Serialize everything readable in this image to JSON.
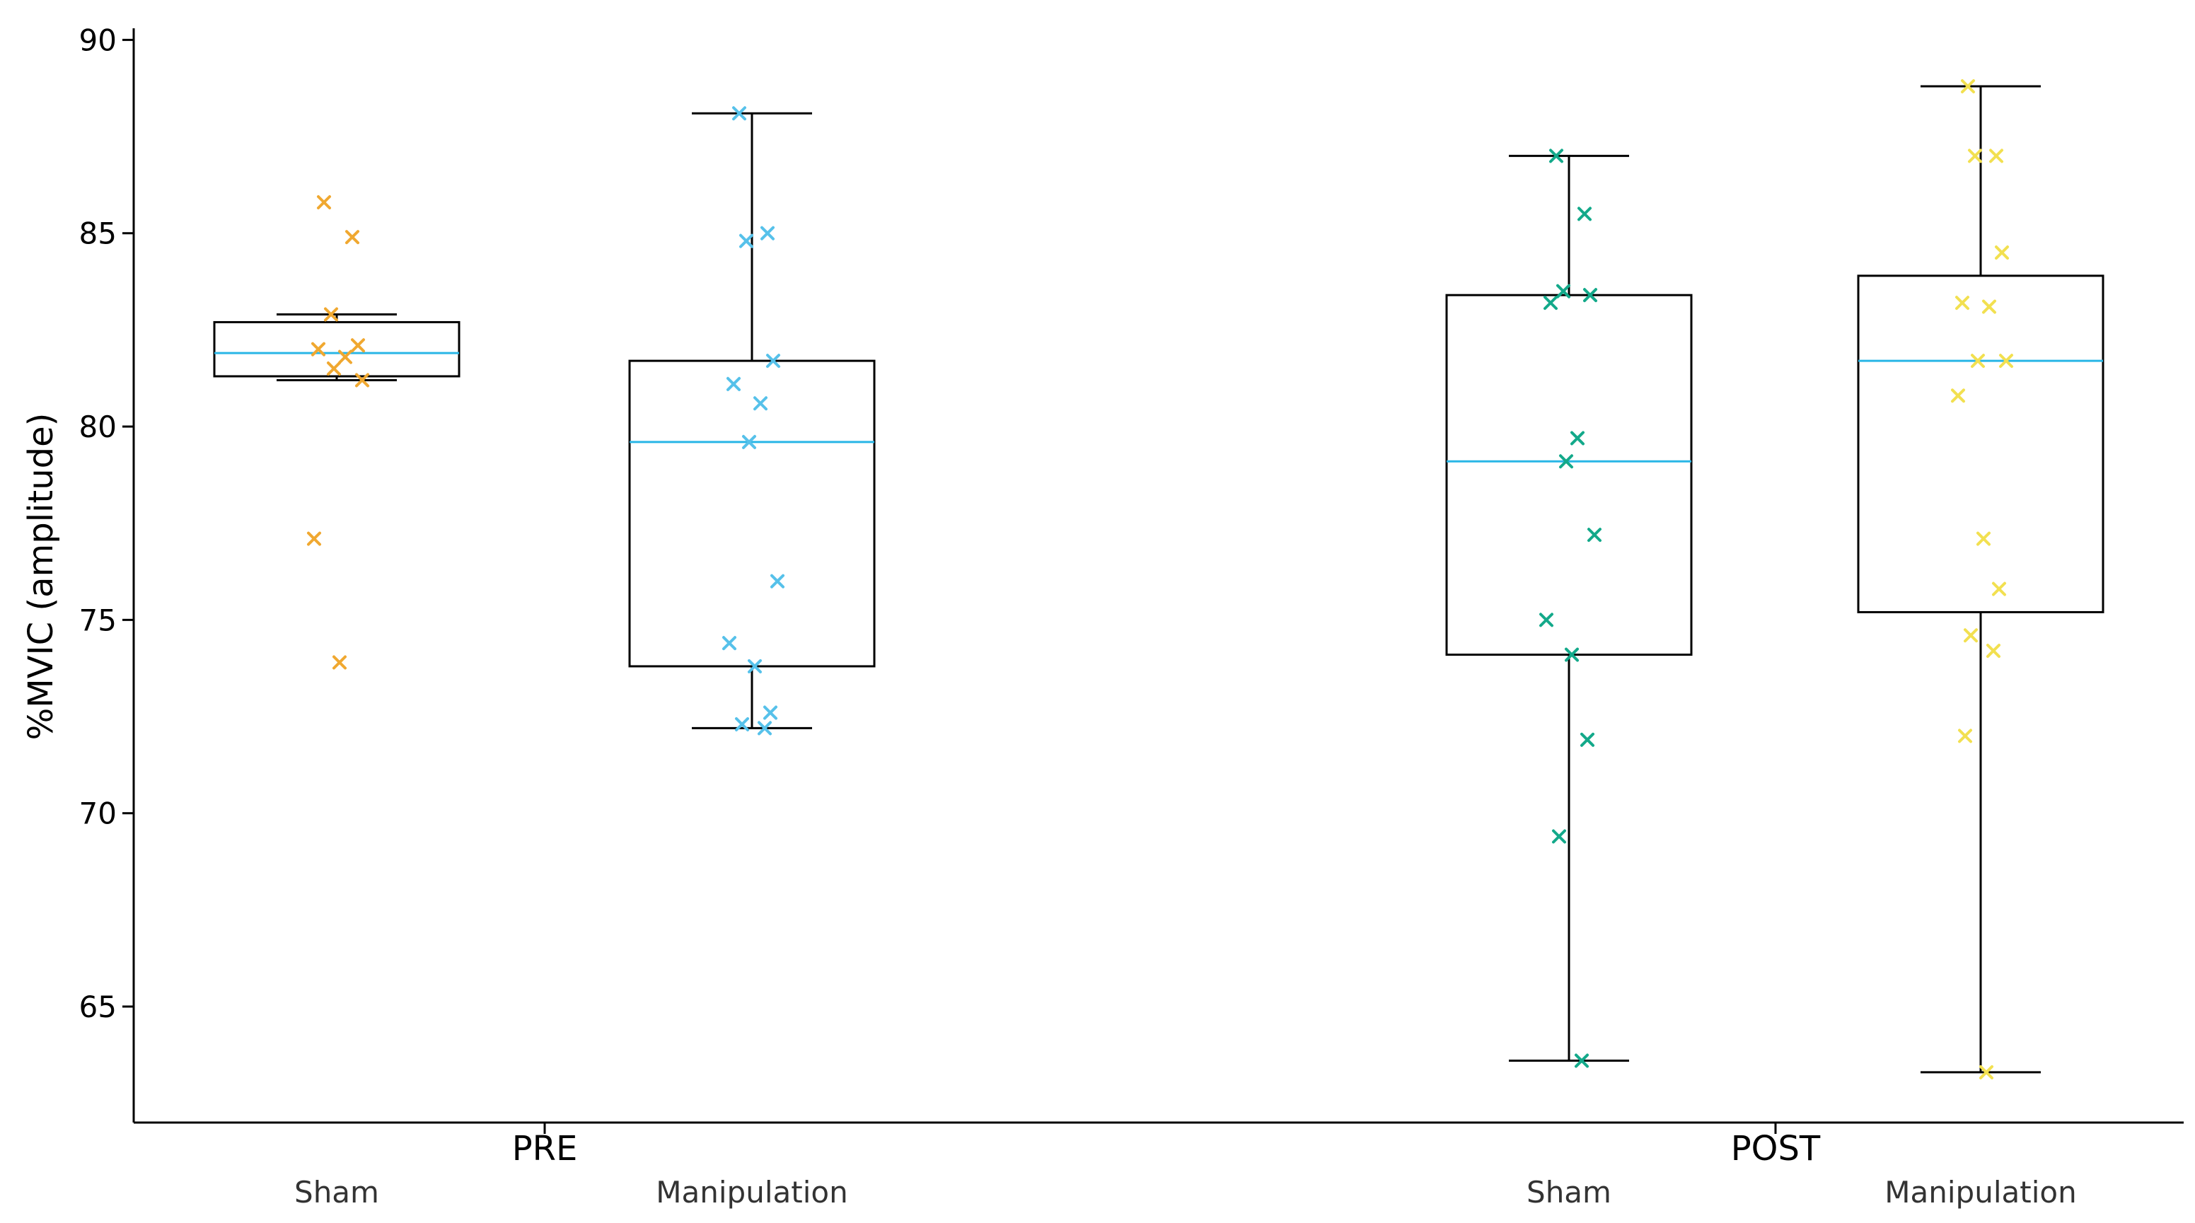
{
  "chart_data": {
    "type": "box",
    "ylabel": "%MVIC (amplitude)",
    "ylim": [
      62,
      90.3
    ],
    "yticks": [
      65,
      70,
      75,
      80,
      85,
      90
    ],
    "grid": false,
    "median_color": "#29b6e6",
    "groups": [
      {
        "label": "PRE",
        "boxes": [
          {
            "label": "Sham",
            "color": "#f0a830",
            "whisker_low": 81.2,
            "q1": 81.3,
            "median": 81.9,
            "q3": 82.7,
            "whisker_high": 82.9,
            "points": [
              85.8,
              84.9,
              82.9,
              82.1,
              82.0,
              81.8,
              81.5,
              81.2,
              77.1,
              73.9
            ]
          },
          {
            "label": "Manipulation",
            "color": "#56c1ea",
            "whisker_low": 72.2,
            "q1": 73.8,
            "median": 79.6,
            "q3": 81.7,
            "whisker_high": 88.1,
            "points": [
              88.1,
              85.0,
              84.8,
              81.7,
              81.1,
              80.6,
              79.6,
              76.0,
              74.4,
              73.8,
              72.6,
              72.3,
              72.2
            ]
          }
        ]
      },
      {
        "label": "POST",
        "boxes": [
          {
            "label": "Sham",
            "color": "#13a98a",
            "whisker_low": 63.6,
            "q1": 74.1,
            "median": 79.1,
            "q3": 83.4,
            "whisker_high": 87.0,
            "points": [
              87.0,
              85.5,
              83.5,
              83.4,
              83.2,
              79.7,
              79.1,
              77.2,
              75.0,
              74.1,
              71.9,
              69.4,
              63.6
            ]
          },
          {
            "label": "Manipulation",
            "color": "#f2e050",
            "whisker_low": 63.3,
            "q1": 75.2,
            "median": 81.7,
            "q3": 83.9,
            "whisker_high": 88.8,
            "points": [
              88.8,
              87.0,
              87.0,
              84.5,
              83.2,
              83.1,
              81.7,
              81.7,
              80.8,
              77.1,
              75.8,
              74.6,
              74.2,
              72.0,
              63.3
            ]
          }
        ]
      }
    ]
  }
}
